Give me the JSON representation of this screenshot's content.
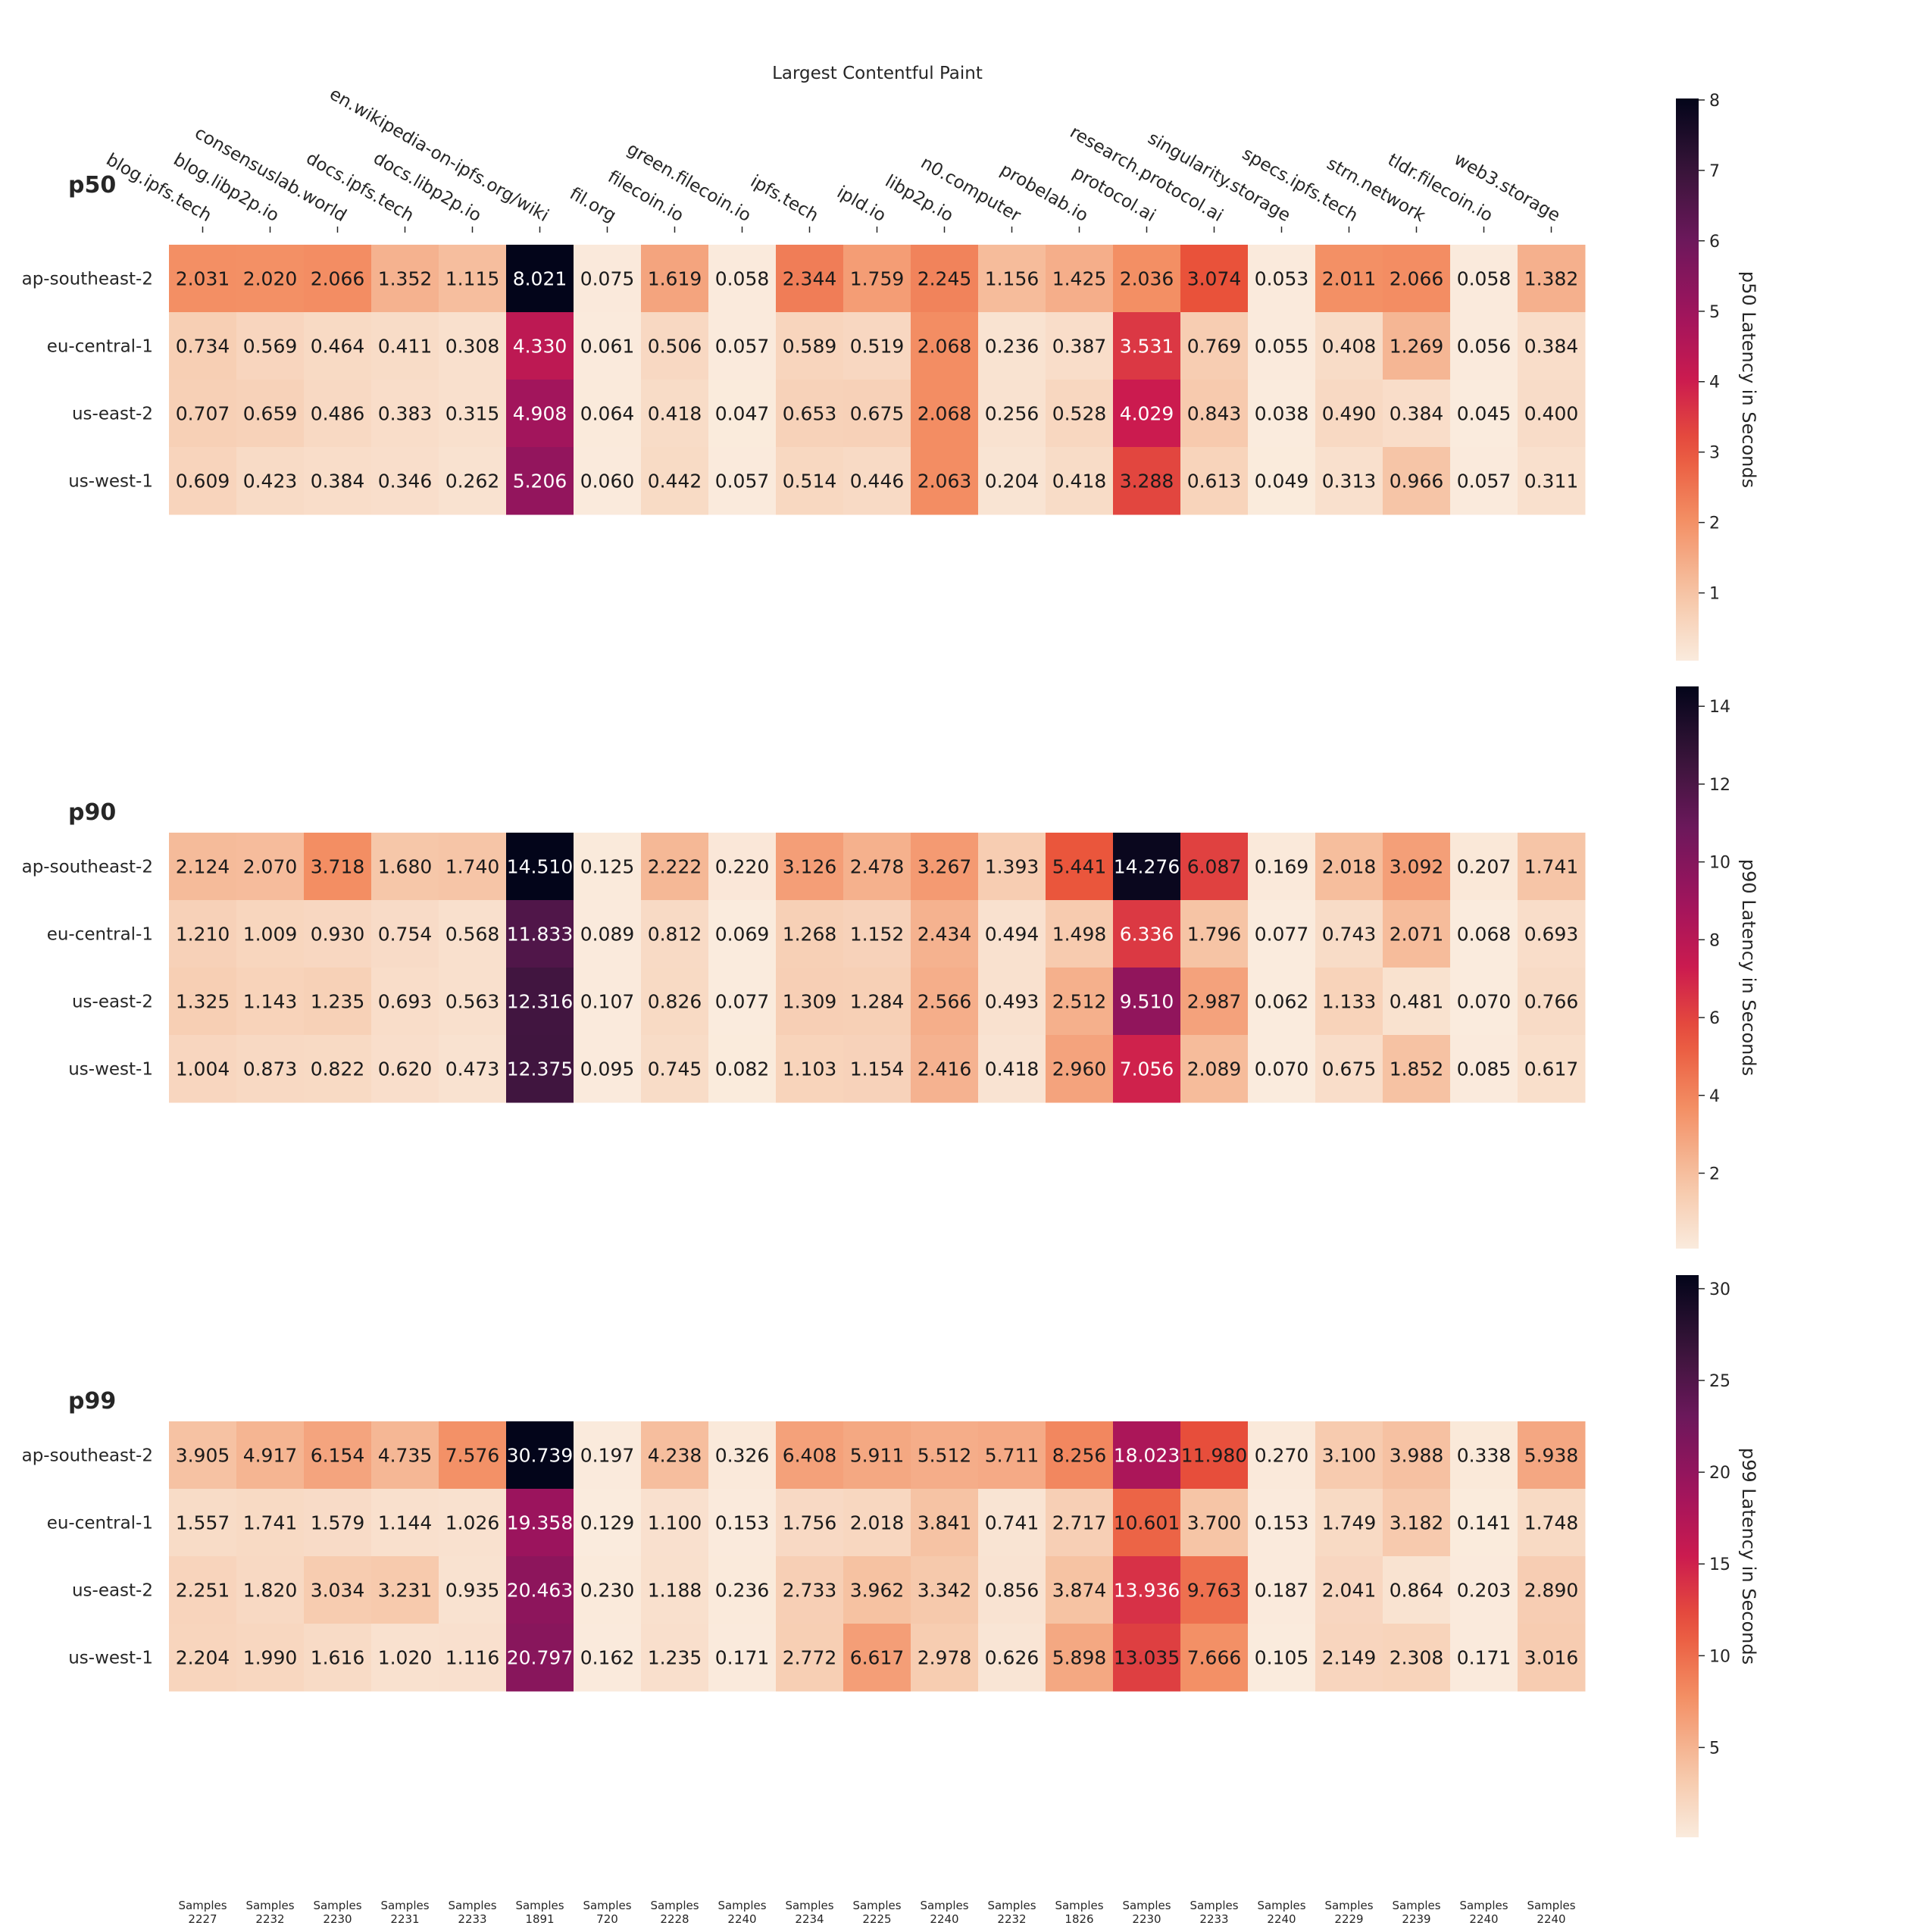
{
  "chart_data": {
    "type": "heatmap",
    "title": "Largest Contentful Paint",
    "columns": [
      "blog.ipfs.tech",
      "blog.libp2p.io",
      "consensuslab.world",
      "docs.ipfs.tech",
      "docs.libp2p.io",
      "en.wikipedia-on-ipfs.org/wiki",
      "fil.org",
      "filecoin.io",
      "green.filecoin.io",
      "ipfs.tech",
      "ipld.io",
      "libp2p.io",
      "n0.computer",
      "probelab.io",
      "protocol.ai",
      "research.protocol.ai",
      "singularity.storage",
      "specs.ipfs.tech",
      "strn.network",
      "tldr.filecoin.io",
      "web3.storage"
    ],
    "rows": [
      "ap-southeast-2",
      "eu-central-1",
      "us-east-2",
      "us-west-1"
    ],
    "samples_label": "Samples",
    "samples": [
      "2227",
      "2232",
      "2230",
      "2231",
      "2233",
      "1891",
      "720",
      "2228",
      "2240",
      "2234",
      "2225",
      "2240",
      "2232",
      "1826",
      "2230",
      "2233",
      "2240",
      "2229",
      "2239",
      "2240",
      "2240"
    ],
    "colormap": "rocket_r",
    "panels": [
      {
        "name": "p50",
        "colorbar_label": "p50 Latency in Seconds",
        "vmin": 0.038,
        "vmax": 8.021,
        "colorbar_ticks": [
          1,
          2,
          3,
          4,
          5,
          6,
          7,
          8
        ],
        "values": [
          [
            "2.031",
            "2.020",
            "2.066",
            "1.352",
            "1.115",
            "8.021",
            "0.075",
            "1.619",
            "0.058",
            "2.344",
            "1.759",
            "2.245",
            "1.156",
            "1.425",
            "2.036",
            "3.074",
            "0.053",
            "2.011",
            "2.066",
            "0.058",
            "1.382"
          ],
          [
            "0.734",
            "0.569",
            "0.464",
            "0.411",
            "0.308",
            "4.330",
            "0.061",
            "0.506",
            "0.057",
            "0.589",
            "0.519",
            "2.068",
            "0.236",
            "0.387",
            "3.531",
            "0.769",
            "0.055",
            "0.408",
            "1.269",
            "0.056",
            "0.384"
          ],
          [
            "0.707",
            "0.659",
            "0.486",
            "0.383",
            "0.315",
            "4.908",
            "0.064",
            "0.418",
            "0.047",
            "0.653",
            "0.675",
            "2.068",
            "0.256",
            "0.528",
            "4.029",
            "0.843",
            "0.038",
            "0.490",
            "0.384",
            "0.045",
            "0.400"
          ],
          [
            "0.609",
            "0.423",
            "0.384",
            "0.346",
            "0.262",
            "5.206",
            "0.060",
            "0.442",
            "0.057",
            "0.514",
            "0.446",
            "2.063",
            "0.204",
            "0.418",
            "3.288",
            "0.613",
            "0.049",
            "0.313",
            "0.966",
            "0.057",
            "0.311"
          ]
        ]
      },
      {
        "name": "p90",
        "colorbar_label": "p90 Latency in Seconds",
        "vmin": 0.062,
        "vmax": 14.51,
        "colorbar_ticks": [
          2,
          4,
          6,
          8,
          10,
          12,
          14
        ],
        "values": [
          [
            "2.124",
            "2.070",
            "3.718",
            "1.680",
            "1.740",
            "14.510",
            "0.125",
            "2.222",
            "0.220",
            "3.126",
            "2.478",
            "3.267",
            "1.393",
            "5.441",
            "14.276",
            "6.087",
            "0.169",
            "2.018",
            "3.092",
            "0.207",
            "1.741"
          ],
          [
            "1.210",
            "1.009",
            "0.930",
            "0.754",
            "0.568",
            "11.833",
            "0.089",
            "0.812",
            "0.069",
            "1.268",
            "1.152",
            "2.434",
            "0.494",
            "1.498",
            "6.336",
            "1.796",
            "0.077",
            "0.743",
            "2.071",
            "0.068",
            "0.693"
          ],
          [
            "1.325",
            "1.143",
            "1.235",
            "0.693",
            "0.563",
            "12.316",
            "0.107",
            "0.826",
            "0.077",
            "1.309",
            "1.284",
            "2.566",
            "0.493",
            "2.512",
            "9.510",
            "2.987",
            "0.062",
            "1.133",
            "0.481",
            "0.070",
            "0.766"
          ],
          [
            "1.004",
            "0.873",
            "0.822",
            "0.620",
            "0.473",
            "12.375",
            "0.095",
            "0.745",
            "0.082",
            "1.103",
            "1.154",
            "2.416",
            "0.418",
            "2.960",
            "7.056",
            "2.089",
            "0.070",
            "0.675",
            "1.852",
            "0.085",
            "0.617"
          ]
        ]
      },
      {
        "name": "p99",
        "colorbar_label": "p99 Latency in Seconds",
        "vmin": 0.105,
        "vmax": 30.739,
        "colorbar_ticks": [
          5,
          10,
          15,
          20,
          25,
          30
        ],
        "values": [
          [
            "3.905",
            "4.917",
            "6.154",
            "4.735",
            "7.576",
            "30.739",
            "0.197",
            "4.238",
            "0.326",
            "6.408",
            "5.911",
            "5.512",
            "5.711",
            "8.256",
            "18.023",
            "11.980",
            "0.270",
            "3.100",
            "3.988",
            "0.338",
            "5.938"
          ],
          [
            "1.557",
            "1.741",
            "1.579",
            "1.144",
            "1.026",
            "19.358",
            "0.129",
            "1.100",
            "0.153",
            "1.756",
            "2.018",
            "3.841",
            "0.741",
            "2.717",
            "10.601",
            "3.700",
            "0.153",
            "1.749",
            "3.182",
            "0.141",
            "1.748"
          ],
          [
            "2.251",
            "1.820",
            "3.034",
            "3.231",
            "0.935",
            "20.463",
            "0.230",
            "1.188",
            "0.236",
            "2.733",
            "3.962",
            "3.342",
            "0.856",
            "3.874",
            "13.936",
            "9.763",
            "0.187",
            "2.041",
            "0.864",
            "0.203",
            "2.890"
          ],
          [
            "2.204",
            "1.990",
            "1.616",
            "1.020",
            "1.116",
            "20.797",
            "0.162",
            "1.235",
            "0.171",
            "2.772",
            "6.617",
            "2.978",
            "0.626",
            "5.898",
            "13.035",
            "7.666",
            "0.105",
            "2.149",
            "2.308",
            "0.171",
            "3.016"
          ]
        ]
      }
    ]
  }
}
